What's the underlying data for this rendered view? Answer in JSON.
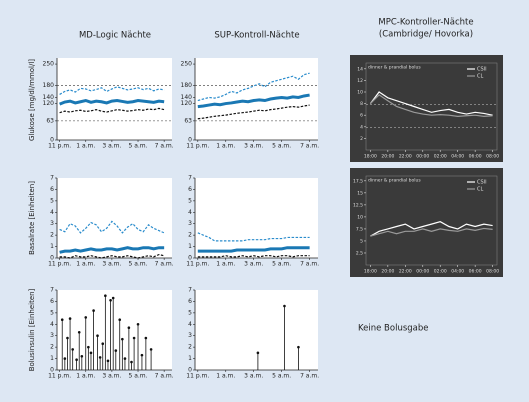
{
  "columns": [
    {
      "title": "MD-Logic Nächte"
    },
    {
      "title": "SUP-Kontroll-Nächte"
    },
    {
      "title": "MPC-Kontroller-Nächte",
      "subtitle": "(Cambridge/ Hovorka)"
    }
  ],
  "row_labels": [
    "Glukose [mg/dl/mmol/l]",
    "Basalrate [Einheiten]",
    "Bolusinsulin [Einheiten]"
  ],
  "note": "Keine Bolusgabe",
  "chart_data": [
    {
      "type": "line",
      "x": [
        0,
        0.4,
        0.8,
        1.2,
        1.6,
        2,
        2.4,
        2.8,
        3.2,
        3.6,
        4,
        4.4,
        4.8,
        5.2,
        5.6,
        6,
        6.4,
        6.8,
        7.2,
        7.6,
        8
      ],
      "series": [
        {
          "color": "#2a8ccc",
          "dash": true,
          "width": 1.2,
          "values": [
            150,
            160,
            165,
            158,
            170,
            168,
            162,
            166,
            172,
            160,
            168,
            175,
            170,
            165,
            168,
            172,
            166,
            170,
            162,
            168,
            165
          ]
        },
        {
          "color": "#1a78b4",
          "dash": false,
          "width": 3,
          "values": [
            118,
            125,
            128,
            122,
            126,
            130,
            124,
            128,
            126,
            122,
            128,
            130,
            127,
            124,
            126,
            130,
            128,
            126,
            124,
            128,
            126
          ]
        },
        {
          "color": "#111111",
          "dash": true,
          "width": 1.2,
          "values": [
            90,
            95,
            92,
            96,
            98,
            94,
            96,
            100,
            95,
            92,
            96,
            100,
            98,
            95,
            97,
            100,
            98,
            102,
            100,
            104,
            100
          ]
        }
      ],
      "reflines": [
        180,
        63
      ],
      "ylim": [
        0,
        270
      ],
      "yticks": [
        0,
        63,
        120,
        140,
        180,
        250
      ],
      "xlim": [
        -0.2,
        8.6
      ],
      "xticks": [
        {
          "value": 0,
          "label": "11 p.m."
        },
        {
          "value": 2,
          "label": "1 a.m."
        },
        {
          "value": 4,
          "label": "3 a.m."
        },
        {
          "value": 6,
          "label": "5 a.m."
        },
        {
          "value": 8,
          "label": "7 a.m."
        }
      ]
    },
    {
      "type": "line",
      "x": [
        0,
        0.4,
        0.8,
        1.2,
        1.6,
        2,
        2.4,
        2.8,
        3.2,
        3.6,
        4,
        4.4,
        4.8,
        5.2,
        5.6,
        6,
        6.4,
        6.8,
        7.2,
        7.6,
        8
      ],
      "series": [
        {
          "color": "#2a8ccc",
          "dash": true,
          "width": 1.2,
          "values": [
            130,
            135,
            140,
            138,
            142,
            150,
            160,
            155,
            165,
            170,
            178,
            185,
            175,
            190,
            195,
            200,
            205,
            210,
            200,
            215,
            220
          ]
        },
        {
          "color": "#1a78b4",
          "dash": false,
          "width": 3,
          "values": [
            110,
            112,
            115,
            118,
            116,
            120,
            122,
            125,
            128,
            126,
            130,
            132,
            130,
            135,
            138,
            140,
            138,
            142,
            140,
            145,
            148
          ]
        },
        {
          "color": "#111111",
          "dash": true,
          "width": 1.2,
          "values": [
            70,
            72,
            75,
            78,
            80,
            82,
            85,
            88,
            90,
            92,
            95,
            98,
            96,
            100,
            102,
            105,
            108,
            110,
            108,
            112,
            115
          ]
        }
      ],
      "reflines": [
        180,
        63
      ],
      "ylim": [
        0,
        270
      ],
      "yticks": [
        0,
        63,
        120,
        140,
        180,
        250
      ],
      "xlim": [
        -0.2,
        8.6
      ],
      "xticks": [
        {
          "value": 0,
          "label": "11 p.m."
        },
        {
          "value": 2,
          "label": "1 a.m."
        },
        {
          "value": 4,
          "label": "3 a.m."
        },
        {
          "value": 6,
          "label": "5 a.m."
        },
        {
          "value": 8,
          "label": "7 a.m."
        }
      ]
    },
    {
      "type": "line",
      "background": "#3a3a3a",
      "x": [
        0,
        1,
        2,
        3,
        4,
        5,
        6,
        7,
        8,
        9,
        10,
        11,
        12,
        13,
        14
      ],
      "series": [
        {
          "name": "CSII",
          "color": "#ffffff",
          "dash": false,
          "width": 1.2,
          "values": [
            8,
            10,
            9,
            8.5,
            8,
            7.5,
            7,
            6.5,
            6.8,
            7,
            6.5,
            6.2,
            6.5,
            6.3,
            6.0
          ]
        },
        {
          "name": "CL",
          "color": "#9a9a9a",
          "dash": false,
          "width": 1.2,
          "values": [
            8,
            9.5,
            8.5,
            7.5,
            7,
            6.5,
            6.2,
            6,
            6.1,
            6,
            5.8,
            5.9,
            6,
            5.8,
            5.9
          ]
        }
      ],
      "annotation": "dinner & prandial bolus",
      "reflines": [
        7.8,
        3.9
      ],
      "ylim": [
        0,
        15
      ],
      "yticks": [
        2,
        4,
        6,
        8,
        10,
        12,
        14
      ],
      "xlim": [
        -0.5,
        14.5
      ],
      "xticks": [
        {
          "value": 0,
          "label": "18:00"
        },
        {
          "value": 2,
          "label": "20:00"
        },
        {
          "value": 4,
          "label": "22:00"
        },
        {
          "value": 6,
          "label": "00:00"
        },
        {
          "value": 8,
          "label": "02:00"
        },
        {
          "value": 10,
          "label": "04:00"
        },
        {
          "value": 12,
          "label": "06:00"
        },
        {
          "value": 14,
          "label": "08:00"
        }
      ]
    },
    {
      "type": "line",
      "x": [
        0,
        0.4,
        0.8,
        1.2,
        1.6,
        2,
        2.4,
        2.8,
        3.2,
        3.6,
        4,
        4.4,
        4.8,
        5.2,
        5.6,
        6,
        6.4,
        6.8,
        7.2,
        7.6,
        8
      ],
      "series": [
        {
          "color": "#2a8ccc",
          "dash": true,
          "width": 1.2,
          "values": [
            2.5,
            2.3,
            3.0,
            2.8,
            2.2,
            2.6,
            3.1,
            2.9,
            2.3,
            2.6,
            3.2,
            2.8,
            2.2,
            2.7,
            3.0,
            2.5,
            2.3,
            2.9,
            2.6,
            2.4,
            2.2
          ]
        },
        {
          "color": "#1a78b4",
          "dash": false,
          "width": 3,
          "values": [
            0.5,
            0.6,
            0.6,
            0.7,
            0.6,
            0.7,
            0.8,
            0.7,
            0.7,
            0.8,
            0.8,
            0.7,
            0.8,
            0.9,
            0.8,
            0.8,
            0.9,
            0.9,
            0.8,
            0.9,
            0.9
          ]
        },
        {
          "color": "#111111",
          "dash": true,
          "width": 1.2,
          "values": [
            0.1,
            0.1,
            0.0,
            0.2,
            0.1,
            0.1,
            0.2,
            0.1,
            0.0,
            0.1,
            0.2,
            0.1,
            0.1,
            0.2,
            0.1,
            0.0,
            0.1,
            0.2,
            0.1,
            0.3,
            0.2
          ]
        }
      ],
      "ylim": [
        0,
        7
      ],
      "yticks": [
        0,
        1,
        2,
        3,
        4,
        5,
        6,
        7
      ],
      "xlim": [
        -0.2,
        8.6
      ],
      "xticks": [
        {
          "value": 0,
          "label": "11 p.m."
        },
        {
          "value": 2,
          "label": "1 a.m."
        },
        {
          "value": 4,
          "label": "3 a.m."
        },
        {
          "value": 6,
          "label": "5 a.m."
        },
        {
          "value": 8,
          "label": "7 a.m."
        }
      ]
    },
    {
      "type": "line",
      "x": [
        0,
        0.4,
        0.8,
        1.2,
        1.6,
        2,
        2.4,
        2.8,
        3.2,
        3.6,
        4,
        4.4,
        4.8,
        5.2,
        5.6,
        6,
        6.4,
        6.8,
        7.2,
        7.6,
        8
      ],
      "series": [
        {
          "color": "#2a8ccc",
          "dash": true,
          "width": 1.2,
          "values": [
            2.2,
            2.0,
            1.8,
            1.5,
            1.5,
            1.5,
            1.5,
            1.5,
            1.5,
            1.6,
            1.6,
            1.6,
            1.6,
            1.7,
            1.7,
            1.7,
            1.8,
            1.8,
            1.8,
            1.8,
            1.8
          ]
        },
        {
          "color": "#1a78b4",
          "dash": false,
          "width": 3,
          "values": [
            0.6,
            0.6,
            0.6,
            0.6,
            0.6,
            0.6,
            0.6,
            0.7,
            0.7,
            0.7,
            0.7,
            0.7,
            0.7,
            0.8,
            0.8,
            0.8,
            0.9,
            0.9,
            0.9,
            0.9,
            0.9
          ]
        },
        {
          "color": "#111111",
          "dash": true,
          "width": 1.2,
          "values": [
            0.1,
            0.1,
            0.1,
            0.1,
            0.1,
            0.2,
            0.1,
            0.1,
            0.2,
            0.1,
            0.2,
            0.1,
            0.2,
            0.2,
            0.1,
            0.2,
            0.2,
            0.1,
            0.2,
            0.2,
            0.2
          ]
        }
      ],
      "ylim": [
        0,
        7
      ],
      "yticks": [
        0,
        1,
        2,
        3,
        4,
        5,
        6,
        7
      ],
      "xlim": [
        -0.2,
        8.6
      ],
      "xticks": [
        {
          "value": 0,
          "label": "11 p.m."
        },
        {
          "value": 2,
          "label": "1 a.m."
        },
        {
          "value": 4,
          "label": "3 a.m."
        },
        {
          "value": 6,
          "label": "5 a.m."
        },
        {
          "value": 8,
          "label": "7 a.m."
        }
      ]
    },
    {
      "type": "line",
      "background": "#3a3a3a",
      "x": [
        0,
        1,
        2,
        3,
        4,
        5,
        6,
        7,
        8,
        9,
        10,
        11,
        12,
        13,
        14
      ],
      "series": [
        {
          "name": "CSII",
          "color": "#ffffff",
          "dash": false,
          "width": 1.2,
          "values": [
            6,
            7,
            7.5,
            8,
            8.5,
            7.5,
            8,
            8.5,
            9,
            8,
            7.5,
            8.5,
            8,
            8.5,
            8.2
          ]
        },
        {
          "name": "CL",
          "color": "#9a9a9a",
          "dash": false,
          "width": 1.2,
          "values": [
            6,
            6.5,
            7,
            6.5,
            7,
            7,
            7.5,
            7,
            7.5,
            7.2,
            7,
            7.5,
            7.2,
            7.6,
            7.4
          ]
        }
      ],
      "annotation": "dinner & prandial bolus",
      "ylim": [
        0,
        18.5
      ],
      "yticks": [
        2.5,
        5,
        7.5,
        10,
        12.5,
        15,
        17.5
      ],
      "xlim": [
        -0.5,
        14.5
      ],
      "xticks": [
        {
          "value": 0,
          "label": "18:00"
        },
        {
          "value": 2,
          "label": "20:00"
        },
        {
          "value": 4,
          "label": "22:00"
        },
        {
          "value": 6,
          "label": "00:00"
        },
        {
          "value": 8,
          "label": "02:00"
        },
        {
          "value": 10,
          "label": "04:00"
        },
        {
          "value": 12,
          "label": "06:00"
        },
        {
          "value": 14,
          "label": "08:00"
        }
      ]
    },
    {
      "type": "stem",
      "color": "#111111",
      "x": [
        0.2,
        0.4,
        0.6,
        0.8,
        1.0,
        1.3,
        1.5,
        1.7,
        2.0,
        2.2,
        2.4,
        2.6,
        2.9,
        3.1,
        3.3,
        3.5,
        3.7,
        3.9,
        4.1,
        4.3,
        4.6,
        4.8,
        5.0,
        5.3,
        5.5,
        5.7,
        6.0,
        6.3,
        6.6,
        7.0
      ],
      "values": [
        4.4,
        1.0,
        2.8,
        4.5,
        1.8,
        0.9,
        3.3,
        1.2,
        4.6,
        2.0,
        1.5,
        5.2,
        3.0,
        1.1,
        2.3,
        6.5,
        0.8,
        6.1,
        6.3,
        1.7,
        4.4,
        2.7,
        1.0,
        3.7,
        0.7,
        2.8,
        4.0,
        1.3,
        2.8,
        1.8
      ],
      "ylim": [
        0,
        7
      ],
      "yticks": [
        0,
        1,
        2,
        3,
        4,
        5,
        6,
        7
      ],
      "xlim": [
        -0.2,
        8.6
      ],
      "xticks": [
        {
          "value": 0,
          "label": "11 p.m."
        },
        {
          "value": 2,
          "label": "1 a.m."
        },
        {
          "value": 4,
          "label": "3 a.m."
        },
        {
          "value": 6,
          "label": "5 a.m."
        },
        {
          "value": 8,
          "label": "7 a.m."
        }
      ]
    },
    {
      "type": "stem",
      "color": "#111111",
      "x": [
        4.3,
        6.2,
        7.2
      ],
      "values": [
        1.5,
        5.6,
        2.0
      ],
      "ylim": [
        0,
        7
      ],
      "yticks": [
        0,
        1,
        2,
        3,
        4,
        5,
        6,
        7
      ],
      "xlim": [
        -0.2,
        8.6
      ],
      "xticks": [
        {
          "value": 0,
          "label": "11 p.m."
        },
        {
          "value": 2,
          "label": "1 a.m."
        },
        {
          "value": 4,
          "label": "3 a.m."
        },
        {
          "value": 6,
          "label": "5 a.m."
        },
        {
          "value": 8,
          "label": "7 a.m."
        }
      ]
    }
  ]
}
